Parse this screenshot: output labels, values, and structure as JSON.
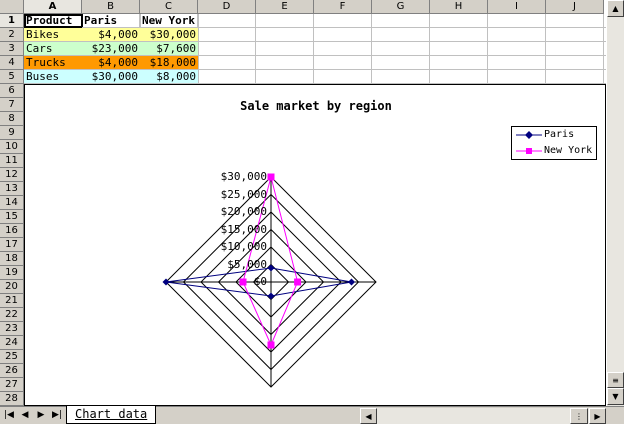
{
  "columns": [
    "A",
    "B",
    "C",
    "D",
    "E",
    "F",
    "G",
    "H",
    "I",
    "J"
  ],
  "rows": [
    "1",
    "2",
    "3",
    "4",
    "5",
    "6",
    "7",
    "8",
    "9",
    "10",
    "11",
    "12",
    "13",
    "14",
    "15",
    "16",
    "17",
    "18",
    "19",
    "20",
    "21",
    "22",
    "23",
    "24",
    "25",
    "26",
    "27",
    "28"
  ],
  "table": {
    "headers": [
      "Product",
      "Paris",
      "New York"
    ],
    "rows": [
      {
        "product": "Bikes",
        "paris": "$4,000",
        "newyork": "$30,000",
        "color": "#ffff99"
      },
      {
        "product": "Cars",
        "paris": "$23,000",
        "newyork": "$7,600",
        "color": "#ccffcc"
      },
      {
        "product": "Trucks",
        "paris": "$4,000",
        "newyork": "$18,000",
        "color": "#ff9900"
      },
      {
        "product": "Buses",
        "paris": "$30,000",
        "newyork": "$8,000",
        "color": "#ccffff"
      }
    ]
  },
  "chart_data": {
    "type": "radar",
    "title": "Sale market by region",
    "categories": [
      "Bikes",
      "Cars",
      "Trucks",
      "Buses"
    ],
    "series": [
      {
        "name": "Paris",
        "values": [
          4000,
          23000,
          4000,
          30000
        ],
        "color": "#000080",
        "marker": "diamond"
      },
      {
        "name": "New York",
        "values": [
          30000,
          7600,
          18000,
          8000
        ],
        "color": "#ff00ff",
        "marker": "square"
      }
    ],
    "ticks": [
      "$0",
      "$5,000",
      "$10,000",
      "$15,000",
      "$20,000",
      "$25,000",
      "$30,000"
    ],
    "range": [
      0,
      30000
    ],
    "legend": "right"
  },
  "sheet_tab": {
    "label": "Chart data"
  },
  "nav": {
    "first": "|◀",
    "prev": "◀",
    "next": "▶",
    "last": "▶|"
  }
}
